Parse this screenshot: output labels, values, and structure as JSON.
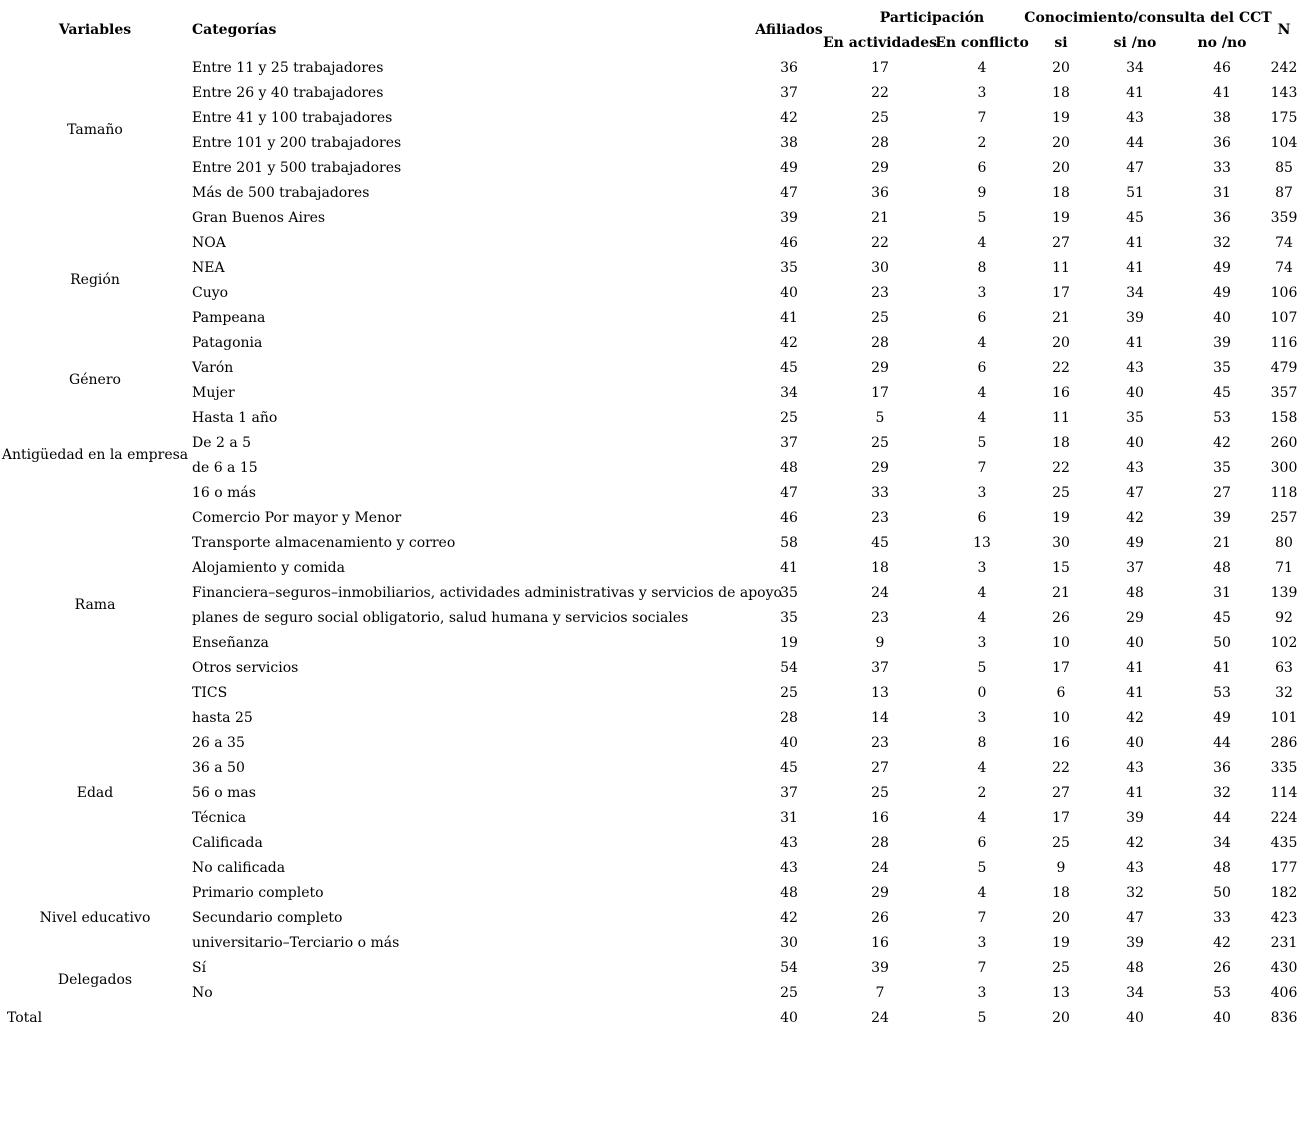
{
  "table": {
    "headers": {
      "variables": "Variables",
      "categorias": "Categorías",
      "afiliados": "Afiliados",
      "participacion": "Participación",
      "en_actividades": "En actividades",
      "en_conflicto": "En conflicto",
      "conocimiento": "Conocimiento/consulta del CCT",
      "si": "si",
      "si_no": "si /no",
      "no_no": "no /no",
      "n": "N"
    },
    "column_keys": [
      "afiliados",
      "en_actividades",
      "en_conflicto",
      "si",
      "si_no",
      "no_no",
      "n"
    ],
    "groups": [
      {
        "variable": "Tamaño",
        "rows": [
          {
            "categoria": "Entre 11 y 25 trabajadores",
            "values": [
              36,
              17,
              4,
              20,
              34,
              46,
              242
            ]
          },
          {
            "categoria": "Entre 26 y 40 trabajadores",
            "values": [
              37,
              22,
              3,
              18,
              41,
              41,
              143
            ]
          },
          {
            "categoria": "Entre 41 y 100 trabajadores",
            "values": [
              42,
              25,
              7,
              19,
              43,
              38,
              175
            ]
          },
          {
            "categoria": "Entre 101 y 200 trabajadores",
            "values": [
              38,
              28,
              2,
              20,
              44,
              36,
              104
            ]
          },
          {
            "categoria": "Entre 201 y 500 trabajadores",
            "values": [
              49,
              29,
              6,
              20,
              47,
              33,
              85
            ]
          },
          {
            "categoria": "Más de 500 trabajadores",
            "values": [
              47,
              36,
              9,
              18,
              51,
              31,
              87
            ]
          }
        ]
      },
      {
        "variable": "Región",
        "rows": [
          {
            "categoria": "Gran Buenos Aires",
            "values": [
              39,
              21,
              5,
              19,
              45,
              36,
              359
            ]
          },
          {
            "categoria": "NOA",
            "values": [
              46,
              22,
              4,
              27,
              41,
              32,
              74
            ]
          },
          {
            "categoria": "NEA",
            "values": [
              35,
              30,
              8,
              11,
              41,
              49,
              74
            ]
          },
          {
            "categoria": "Cuyo",
            "values": [
              40,
              23,
              3,
              17,
              34,
              49,
              106
            ]
          },
          {
            "categoria": "Pampeana",
            "values": [
              41,
              25,
              6,
              21,
              39,
              40,
              107
            ]
          },
          {
            "categoria": "Patagonia",
            "values": [
              42,
              28,
              4,
              20,
              41,
              39,
              116
            ]
          }
        ]
      },
      {
        "variable": "Género",
        "rows": [
          {
            "categoria": "Varón",
            "values": [
              45,
              29,
              6,
              22,
              43,
              35,
              479
            ]
          },
          {
            "categoria": "Mujer",
            "values": [
              34,
              17,
              4,
              16,
              40,
              45,
              357
            ]
          }
        ]
      },
      {
        "variable": "Antigüedad en la empresa",
        "rows": [
          {
            "categoria": "Hasta 1 año",
            "values": [
              25,
              5,
              4,
              11,
              35,
              53,
              158
            ]
          },
          {
            "categoria": "De 2 a 5",
            "values": [
              37,
              25,
              5,
              18,
              40,
              42,
              260
            ]
          },
          {
            "categoria": "de 6 a 15",
            "values": [
              48,
              29,
              7,
              22,
              43,
              35,
              300
            ]
          },
          {
            "categoria": "16 o más",
            "values": [
              47,
              33,
              3,
              25,
              47,
              27,
              118
            ]
          }
        ]
      },
      {
        "variable": "Rama",
        "rows": [
          {
            "categoria": "Comercio Por mayor y Menor",
            "values": [
              46,
              23,
              6,
              19,
              42,
              39,
              257
            ]
          },
          {
            "categoria": "Transporte almacenamiento y correo",
            "values": [
              58,
              45,
              13,
              30,
              49,
              21,
              80
            ]
          },
          {
            "categoria": "Alojamiento y comida",
            "values": [
              41,
              18,
              3,
              15,
              37,
              48,
              71
            ]
          },
          {
            "categoria": "Financiera–seguros–inmobiliarios, actividades administrativas y servicios de apoyo",
            "values": [
              35,
              24,
              4,
              21,
              48,
              31,
              139
            ]
          },
          {
            "categoria": "planes de seguro social obligatorio, salud humana y servicios sociales",
            "values": [
              35,
              23,
              4,
              26,
              29,
              45,
              92
            ]
          },
          {
            "categoria": "Enseñanza",
            "values": [
              19,
              9,
              3,
              10,
              40,
              50,
              102
            ]
          },
          {
            "categoria": "Otros servicios",
            "values": [
              54,
              37,
              5,
              17,
              41,
              41,
              63
            ]
          },
          {
            "categoria": "TICS",
            "values": [
              25,
              13,
              0,
              6,
              41,
              53,
              32
            ]
          }
        ]
      },
      {
        "variable": "Edad",
        "rows": [
          {
            "categoria": "hasta 25",
            "values": [
              28,
              14,
              3,
              10,
              42,
              49,
              101
            ]
          },
          {
            "categoria": "26 a 35",
            "values": [
              40,
              23,
              8,
              16,
              40,
              44,
              286
            ]
          },
          {
            "categoria": "36 a 50",
            "values": [
              45,
              27,
              4,
              22,
              43,
              36,
              335
            ]
          },
          {
            "categoria": "56 o mas",
            "values": [
              37,
              25,
              2,
              27,
              41,
              32,
              114
            ]
          },
          {
            "categoria": "Técnica",
            "values": [
              31,
              16,
              4,
              17,
              39,
              44,
              224
            ]
          },
          {
            "categoria": "Calificada",
            "values": [
              43,
              28,
              6,
              25,
              42,
              34,
              435
            ]
          },
          {
            "categoria": "No calificada",
            "values": [
              43,
              24,
              5,
              9,
              43,
              48,
              177
            ]
          }
        ]
      },
      {
        "variable": "Nivel educativo",
        "rows": [
          {
            "categoria": "Primario completo",
            "values": [
              48,
              29,
              4,
              18,
              32,
              50,
              182
            ]
          },
          {
            "categoria": "Secundario completo",
            "values": [
              42,
              26,
              7,
              20,
              47,
              33,
              423
            ]
          },
          {
            "categoria": "universitario–Terciario o más",
            "values": [
              30,
              16,
              3,
              19,
              39,
              42,
              231
            ]
          }
        ]
      },
      {
        "variable": "Delegados",
        "rows": [
          {
            "categoria": "Sí",
            "values": [
              54,
              39,
              7,
              25,
              48,
              26,
              430
            ]
          },
          {
            "categoria": "No",
            "values": [
              25,
              7,
              3,
              13,
              34,
              53,
              406
            ]
          }
        ]
      }
    ],
    "total": {
      "label": "Total",
      "values": [
        40,
        24,
        5,
        20,
        40,
        40,
        836
      ]
    },
    "colors": {
      "text": "#000000",
      "background": "#ffffff"
    }
  }
}
